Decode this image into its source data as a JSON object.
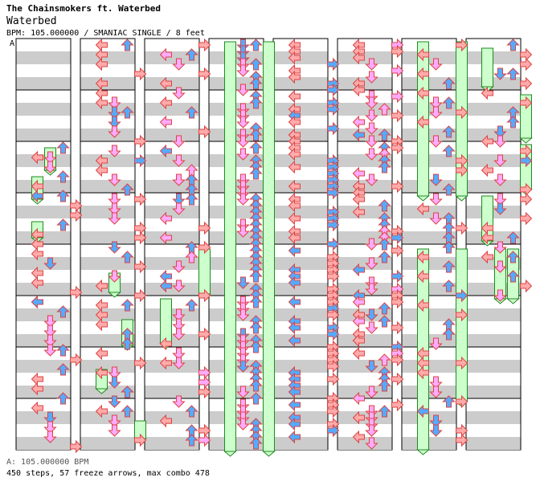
{
  "header": {
    "title": "The Chainsmokers ft. Waterbed",
    "song": "Waterbed",
    "info": "BPM: 105.000000 / SMANIAC SINGLE / 8 feet"
  },
  "chart": {
    "marker": "A",
    "note_colors": {
      "tap_red": "#ffaaaa",
      "tap_pink": "#ffaaff",
      "tap_blue": "#55aaff",
      "freeze": "#ccffcc"
    },
    "stripe_color": "#cccccc"
  },
  "footer": {
    "bpm": "A: 105.000000 BPM",
    "stats": "450 steps, 57 freeze arrows, max combo 478"
  }
}
